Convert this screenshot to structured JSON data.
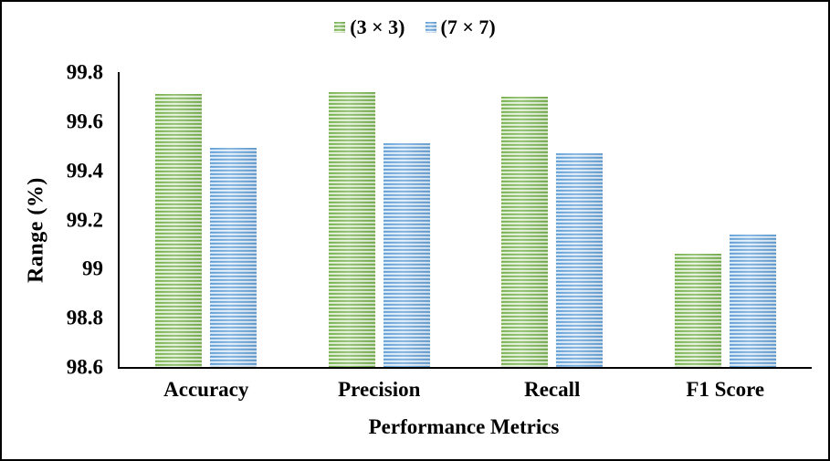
{
  "figure": {
    "background": "#FFFFFF",
    "border_color": "#000000"
  },
  "chart_data": {
    "type": "bar",
    "title": "",
    "xlabel": "Performance Metrics",
    "ylabel": "Range (%)",
    "categories": [
      "Accuracy",
      "Precision",
      "Recall",
      "F1 Score"
    ],
    "series": [
      {
        "name": "(3 × 3)",
        "values": [
          99.71,
          99.72,
          99.7,
          99.06
        ],
        "color_dark": "#70AD47",
        "color_mid": "#A9D08E",
        "color_light": "#EBF4E3"
      },
      {
        "name": "(7 × 7)",
        "values": [
          99.49,
          99.51,
          99.47,
          99.14
        ],
        "color_dark": "#5B9BD5",
        "color_mid": "#9DC3E6",
        "color_light": "#E8F1FA"
      }
    ],
    "ylim": [
      98.6,
      99.8
    ],
    "ytick_step": 0.2,
    "yticks": [
      "99.8",
      "99.6",
      "99.4",
      "99.2",
      "99",
      "98.8",
      "98.6"
    ],
    "grid": false,
    "legend_position": "top-center",
    "bar_style": "horizontal-stripes"
  }
}
